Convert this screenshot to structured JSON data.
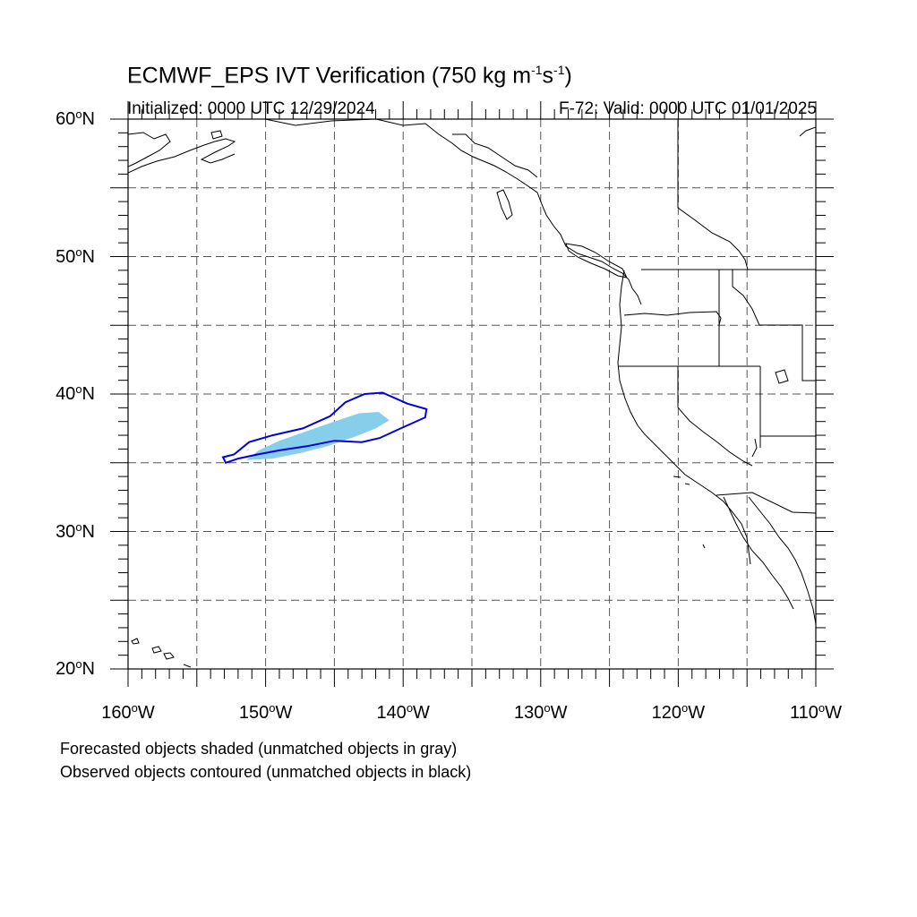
{
  "title": {
    "main": "ECMWF_EPS IVT Verification (750 kg m",
    "sup1": "-1",
    "mid": "s",
    "sup2": "-1",
    "end": ")"
  },
  "subtitle": {
    "initialized": "Initialized: 0000 UTC 12/29/2024",
    "valid": "F-72: Valid: 0000 UTC 01/01/2025"
  },
  "axes": {
    "lon_range": [
      -160,
      -110
    ],
    "lat_range": [
      20,
      60
    ],
    "lat_labels": [
      {
        "value": 60,
        "num": "60",
        "hemi": "N"
      },
      {
        "value": 50,
        "num": "50",
        "hemi": "N"
      },
      {
        "value": 40,
        "num": "40",
        "hemi": "N"
      },
      {
        "value": 30,
        "num": "30",
        "hemi": "N"
      },
      {
        "value": 20,
        "num": "20",
        "hemi": "N"
      }
    ],
    "lon_labels": [
      {
        "value": -160,
        "num": "160",
        "hemi": "W"
      },
      {
        "value": -150,
        "num": "150",
        "hemi": "W"
      },
      {
        "value": -140,
        "num": "140",
        "hemi": "W"
      },
      {
        "value": -130,
        "num": "130",
        "hemi": "W"
      },
      {
        "value": -120,
        "num": "120",
        "hemi": "W"
      },
      {
        "value": -110,
        "num": "110",
        "hemi": "W"
      }
    ],
    "grid_spacing_deg": 5,
    "grid": true
  },
  "legend": {
    "line1": "Forecasted objects shaded (unmatched objects in gray)",
    "line2": "Observed objects contoured (unmatched objects in black)"
  },
  "colors": {
    "forecast_fill": "#87ceeb",
    "observed_contour": "#0000dd",
    "coastline": "#000000",
    "grid": "#555555"
  },
  "objects": {
    "forecast_shaded": [
      [
        -151.4,
        35.2
      ],
      [
        -150.5,
        35.9
      ],
      [
        -149.0,
        36.6
      ],
      [
        -147.0,
        37.3
      ],
      [
        -145.0,
        38.0
      ],
      [
        -143.2,
        38.6
      ],
      [
        -141.8,
        38.7
      ],
      [
        -141.0,
        38.1
      ],
      [
        -142.0,
        37.5
      ],
      [
        -143.5,
        36.9
      ],
      [
        -145.5,
        36.2
      ],
      [
        -147.5,
        35.7
      ],
      [
        -149.5,
        35.3
      ]
    ],
    "observed_contour": [
      [
        -152.9,
        35.0
      ],
      [
        -153.1,
        35.4
      ],
      [
        -152.3,
        35.6
      ],
      [
        -151.2,
        36.5
      ],
      [
        -149.5,
        37.0
      ],
      [
        -147.3,
        37.5
      ],
      [
        -145.3,
        38.4
      ],
      [
        -144.2,
        39.4
      ],
      [
        -142.8,
        40.0
      ],
      [
        -141.5,
        40.1
      ],
      [
        -139.7,
        39.3
      ],
      [
        -138.3,
        38.9
      ],
      [
        -138.4,
        38.3
      ],
      [
        -140.4,
        37.4
      ],
      [
        -141.7,
        36.8
      ],
      [
        -143.0,
        36.5
      ],
      [
        -145.0,
        36.6
      ],
      [
        -147.0,
        36.2
      ],
      [
        -149.0,
        35.9
      ],
      [
        -150.6,
        35.6
      ],
      [
        -152.0,
        35.3
      ]
    ]
  }
}
